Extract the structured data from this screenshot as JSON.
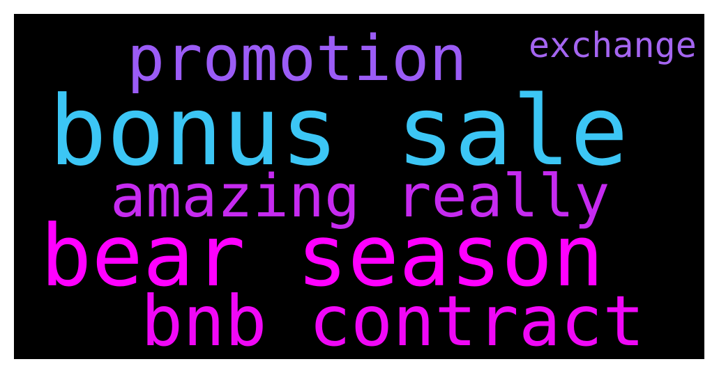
{
  "background_color": "#000000",
  "words": [
    {
      "id": "promotion",
      "text": "promotion",
      "color": "#9b5cf6"
    },
    {
      "id": "exchange",
      "text": "exchange",
      "color": "#a465f0"
    },
    {
      "id": "bonus",
      "text": "bonus sale",
      "color": "#3cc6f5"
    },
    {
      "id": "amazing",
      "text": "amazing really",
      "color": "#c62bf0"
    },
    {
      "id": "bear",
      "text": "bear season",
      "color": "#ff00ff"
    },
    {
      "id": "bnb",
      "text": "bnb contract",
      "color": "#f008f6"
    }
  ]
}
